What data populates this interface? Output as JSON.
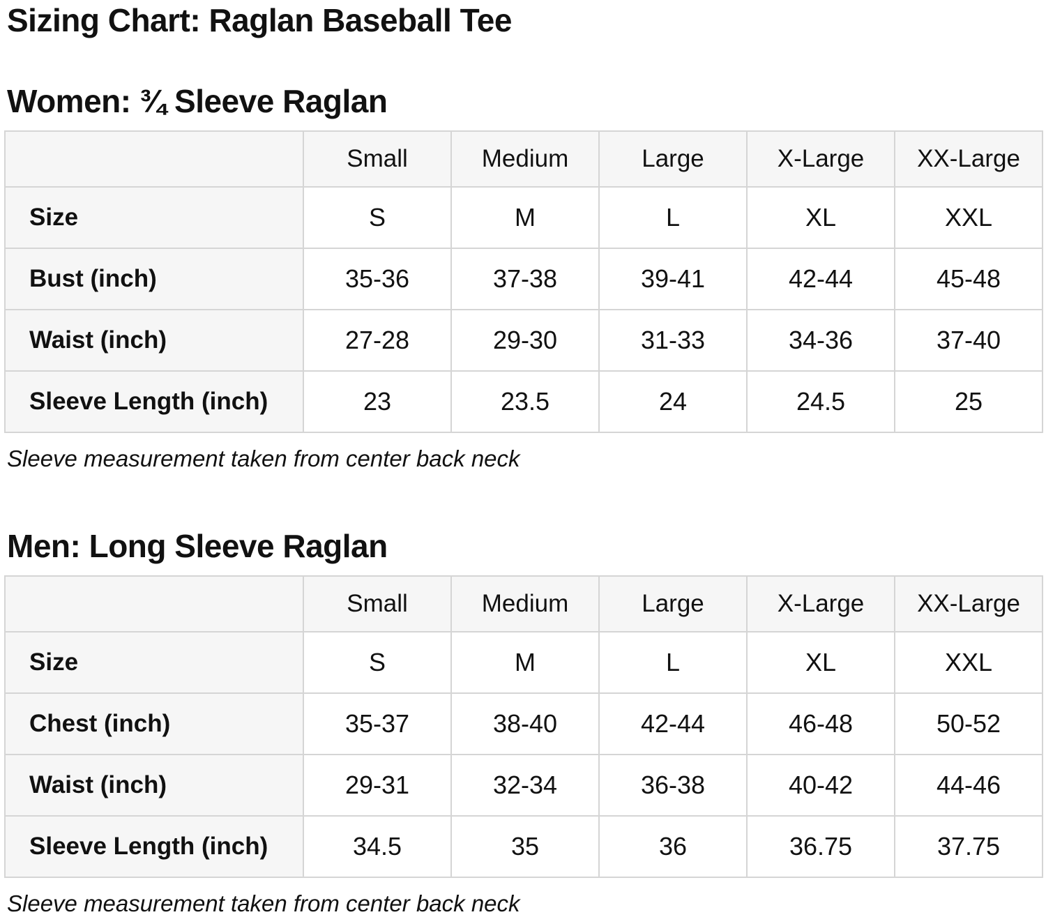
{
  "page": {
    "title": "Sizing Chart: Raglan Baseball Tee"
  },
  "colors": {
    "table_header_bg": "#f6f6f6",
    "table_border": "#d5d5d5",
    "text": "#111111"
  },
  "sections": [
    {
      "heading": "Women: ¾ Sleeve Raglan",
      "note": "Sleeve measurement taken from center back neck",
      "table": {
        "columns": [
          "",
          "Small",
          "Medium",
          "Large",
          "X-Large",
          "XX-Large"
        ],
        "rows": [
          {
            "label": "Size",
            "values": [
              "S",
              "M",
              "L",
              "XL",
              "XXL"
            ]
          },
          {
            "label": "Bust (inch)",
            "values": [
              "35-36",
              "37-38",
              "39-41",
              "42-44",
              "45-48"
            ]
          },
          {
            "label": "Waist (inch)",
            "values": [
              "27-28",
              "29-30",
              "31-33",
              "34-36",
              "37-40"
            ]
          },
          {
            "label": "Sleeve Length (inch)",
            "values": [
              "23",
              "23.5",
              "24",
              "24.5",
              "25"
            ]
          }
        ]
      }
    },
    {
      "heading": "Men: Long Sleeve Raglan",
      "note": "Sleeve measurement taken from center back neck",
      "table": {
        "columns": [
          "",
          "Small",
          "Medium",
          "Large",
          "X-Large",
          "XX-Large"
        ],
        "rows": [
          {
            "label": "Size",
            "values": [
              "S",
              "M",
              "L",
              "XL",
              "XXL"
            ]
          },
          {
            "label": "Chest (inch)",
            "values": [
              "35-37",
              "38-40",
              "42-44",
              "46-48",
              "50-52"
            ]
          },
          {
            "label": "Waist (inch)",
            "values": [
              "29-31",
              "32-34",
              "36-38",
              "40-42",
              "44-46"
            ]
          },
          {
            "label": "Sleeve Length (inch)",
            "values": [
              "34.5",
              "35",
              "36",
              "36.75",
              "37.75"
            ]
          }
        ]
      }
    }
  ]
}
